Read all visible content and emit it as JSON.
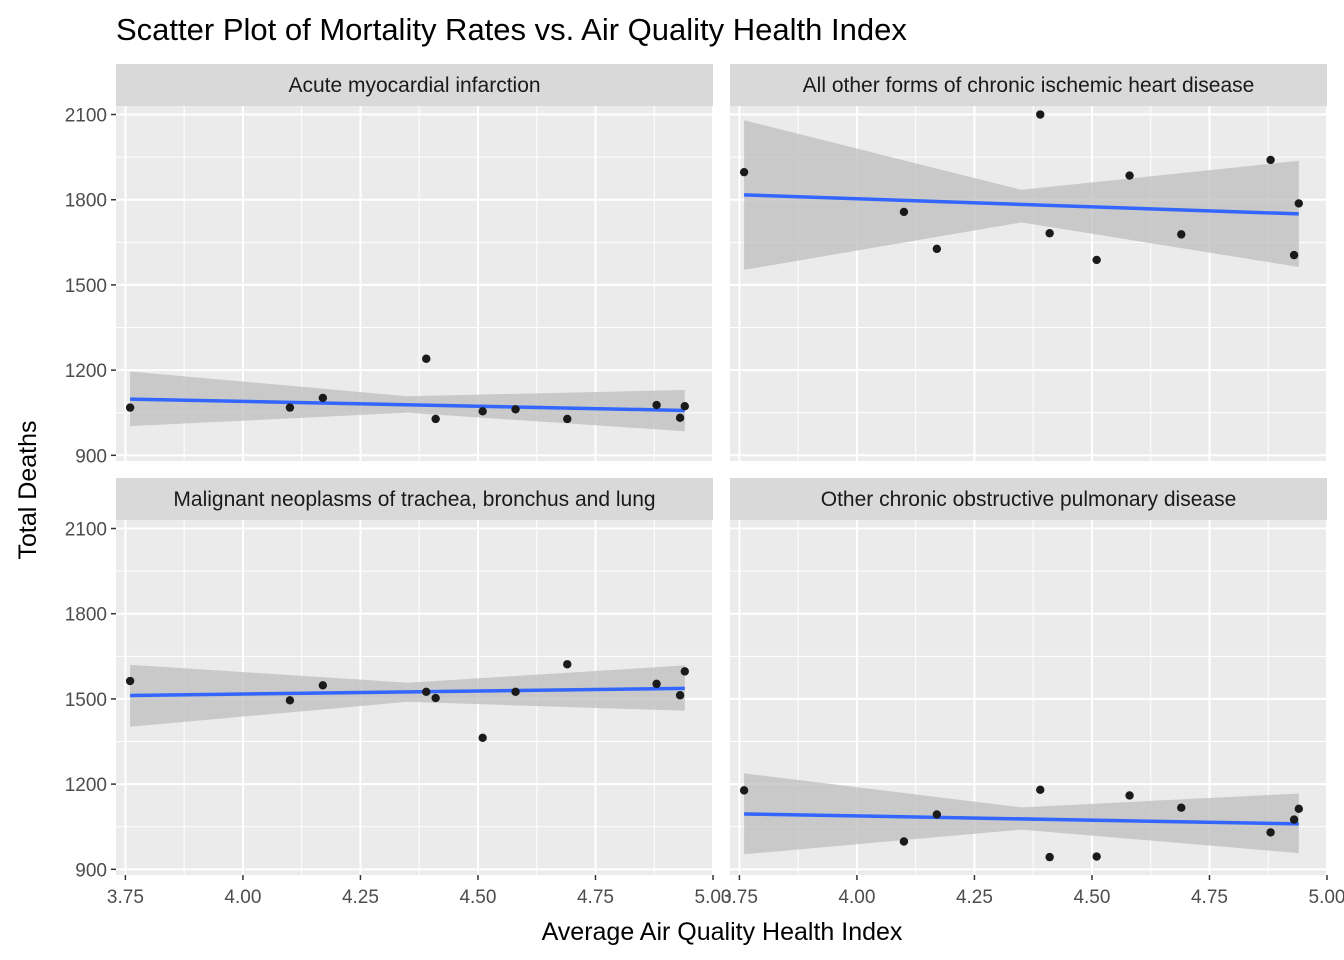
{
  "chart_data": {
    "type": "scatter",
    "title": "Scatter Plot of Mortality Rates vs. Air Quality Health Index",
    "xlabel": "Average Air Quality Health Index",
    "ylabel": "Total Deaths",
    "xlim": [
      3.73,
      5.0
    ],
    "ylim": [
      880,
      2130
    ],
    "x_ticks": [
      3.75,
      4.0,
      4.25,
      4.5,
      4.75,
      5.0
    ],
    "x_tick_labels": [
      "3.75",
      "4.00",
      "4.25",
      "4.50",
      "4.75",
      "5.00"
    ],
    "y_ticks": [
      900,
      1200,
      1500,
      1800,
      2100
    ],
    "y_tick_labels": [
      "900",
      "1200",
      "1500",
      "1800",
      "2100"
    ],
    "grid": true,
    "legend": "none",
    "colors": {
      "panel": "#ebebeb",
      "strip": "#d9d9d9",
      "grid": "#ffffff",
      "point": "#1a1a1a",
      "fit_line": "#3366ff",
      "ribbon": "#bdbdbd"
    },
    "facets": [
      {
        "name": "Acute myocardial infarction",
        "points": [
          [
            3.76,
            1068
          ],
          [
            4.1,
            1068
          ],
          [
            4.17,
            1102
          ],
          [
            4.39,
            1240
          ],
          [
            4.41,
            1028
          ],
          [
            4.51,
            1055
          ],
          [
            4.58,
            1062
          ],
          [
            4.69,
            1028
          ],
          [
            4.88,
            1077
          ],
          [
            4.93,
            1032
          ],
          [
            4.94,
            1073
          ]
        ],
        "fit": {
          "x": [
            3.76,
            4.94
          ],
          "y": [
            1098,
            1058
          ]
        },
        "band": {
          "x": [
            3.76,
            4.35,
            4.94
          ],
          "lower": [
            1003,
            1050,
            985
          ],
          "upper": [
            1195,
            1108,
            1130
          ]
        }
      },
      {
        "name": "All other forms of chronic ischemic heart disease",
        "points": [
          [
            3.76,
            1897
          ],
          [
            4.1,
            1757
          ],
          [
            4.17,
            1627
          ],
          [
            4.39,
            2100
          ],
          [
            4.41,
            1682
          ],
          [
            4.51,
            1588
          ],
          [
            4.58,
            1885
          ],
          [
            4.69,
            1678
          ],
          [
            4.88,
            1940
          ],
          [
            4.93,
            1605
          ],
          [
            4.94,
            1787
          ]
        ],
        "fit": {
          "x": [
            3.76,
            4.94
          ],
          "y": [
            1817,
            1750
          ]
        },
        "band": {
          "x": [
            3.76,
            4.35,
            4.94
          ],
          "lower": [
            1553,
            1720,
            1563
          ],
          "upper": [
            2080,
            1835,
            1937
          ]
        }
      },
      {
        "name": "Malignant neoplasms of trachea, bronchus and lung",
        "points": [
          [
            3.76,
            1563
          ],
          [
            4.1,
            1495
          ],
          [
            4.17,
            1548
          ],
          [
            4.39,
            1525
          ],
          [
            4.41,
            1503
          ],
          [
            4.51,
            1363
          ],
          [
            4.58,
            1525
          ],
          [
            4.69,
            1622
          ],
          [
            4.88,
            1553
          ],
          [
            4.93,
            1513
          ],
          [
            4.94,
            1597
          ]
        ],
        "fit": {
          "x": [
            3.76,
            4.94
          ],
          "y": [
            1512,
            1537
          ]
        },
        "band": {
          "x": [
            3.76,
            4.35,
            4.94
          ],
          "lower": [
            1402,
            1490,
            1458
          ],
          "upper": [
            1620,
            1557,
            1618
          ]
        }
      },
      {
        "name": "Other chronic obstructive pulmonary disease",
        "points": [
          [
            3.76,
            1178
          ],
          [
            4.1,
            998
          ],
          [
            4.17,
            1093
          ],
          [
            4.39,
            1180
          ],
          [
            4.41,
            943
          ],
          [
            4.51,
            945
          ],
          [
            4.58,
            1160
          ],
          [
            4.69,
            1117
          ],
          [
            4.88,
            1030
          ],
          [
            4.93,
            1075
          ],
          [
            4.94,
            1113
          ]
        ],
        "fit": {
          "x": [
            3.76,
            4.94
          ],
          "y": [
            1095,
            1060
          ]
        },
        "band": {
          "x": [
            3.76,
            4.35,
            4.94
          ],
          "lower": [
            953,
            1040,
            957
          ],
          "upper": [
            1238,
            1118,
            1167
          ]
        }
      }
    ]
  }
}
